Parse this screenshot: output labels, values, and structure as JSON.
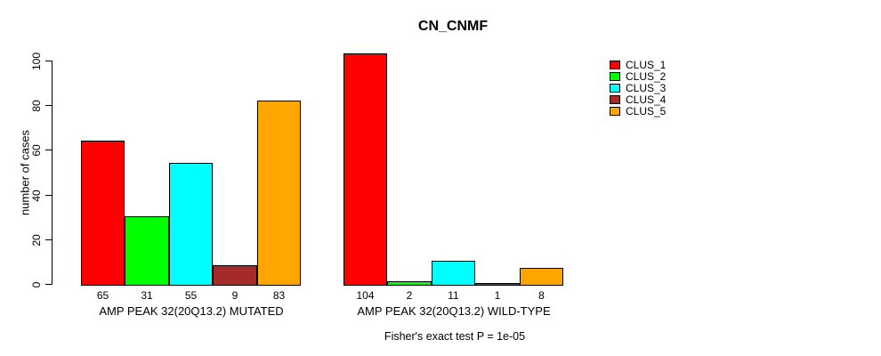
{
  "title": "CN_CNMF",
  "chart_data": {
    "type": "bar",
    "title": "CN_CNMF",
    "xlabel": "",
    "ylabel": "number of cases",
    "ylim": [
      0,
      100
    ],
    "yticks": [
      0,
      20,
      40,
      60,
      80,
      100
    ],
    "grid": false,
    "legend_position": "top-right",
    "bar_value_labels_shown": true,
    "categories": [
      "AMP PEAK 32(20Q13.2) MUTATED",
      "AMP PEAK 32(20Q13.2) WILD-TYPE"
    ],
    "series": [
      {
        "name": "CLUS_1",
        "color": "#FF0000",
        "values": [
          65,
          104
        ]
      },
      {
        "name": "CLUS_2",
        "color": "#00FF00",
        "values": [
          31,
          2
        ]
      },
      {
        "name": "CLUS_3",
        "color": "#00FFFF",
        "values": [
          55,
          11
        ]
      },
      {
        "name": "CLUS_4",
        "color": "#A52A2A",
        "values": [
          9,
          1
        ]
      },
      {
        "name": "CLUS_5",
        "color": "#FFA500",
        "values": [
          83,
          8
        ]
      }
    ],
    "footnote": "Fisher's exact test P = 1e-05"
  }
}
